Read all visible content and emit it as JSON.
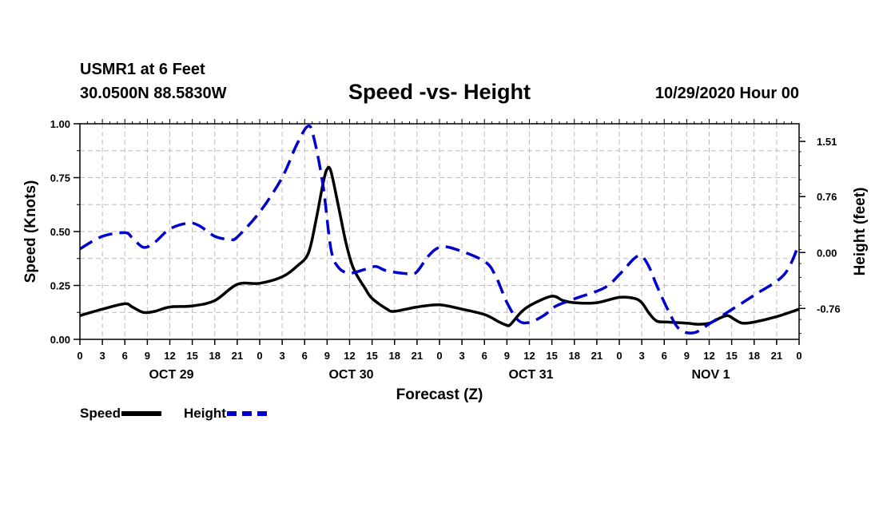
{
  "header": {
    "station": "USMR1 at 6 Feet",
    "coords": "30.0500N 88.5830W",
    "title": "Speed -vs- Height",
    "datetime": "10/29/2020 Hour 00"
  },
  "colors": {
    "speed": "#000000",
    "height": "#0000cc",
    "grid": "#bbbbbb"
  },
  "chart_data": {
    "type": "line",
    "title": "Speed -vs- Height",
    "xlabel": "Forecast (Z)",
    "ylabel_left": "Speed (Knots)",
    "ylabel_right": "Height (feet)",
    "x_range": [
      0,
      96
    ],
    "ylim_left": [
      0,
      1.0
    ],
    "ylim_right": [
      -1.18,
      1.75
    ],
    "left_ticks": [
      "0.00",
      "0.25",
      "0.50",
      "0.75",
      "1.00"
    ],
    "right_ticks": [
      "-0.76",
      "0.00",
      "0.76",
      "1.51"
    ],
    "x_tick_labels": [
      "0",
      "3",
      "6",
      "9",
      "12",
      "15",
      "18",
      "21",
      "0",
      "3",
      "6",
      "9",
      "12",
      "15",
      "18",
      "21",
      "0",
      "3",
      "6",
      "9",
      "12",
      "15",
      "18",
      "21",
      "0",
      "3",
      "6",
      "9",
      "12",
      "15",
      "18",
      "21",
      "0"
    ],
    "day_labels": [
      {
        "label": "OCT 29",
        "hour": 12
      },
      {
        "label": "OCT 30",
        "hour": 36
      },
      {
        "label": "OCT 31",
        "hour": 60
      },
      {
        "label": "NOV 1",
        "hour": 84
      }
    ],
    "grid": true,
    "legend": {
      "position": "bottom-left",
      "speed_label": "Speed",
      "height_label": "Height"
    },
    "series": [
      {
        "name": "Speed",
        "axis": "left",
        "style": "solid",
        "points": [
          [
            0,
            0.11
          ],
          [
            3,
            0.14
          ],
          [
            6,
            0.165
          ],
          [
            7,
            0.15
          ],
          [
            8.5,
            0.125
          ],
          [
            10,
            0.13
          ],
          [
            12,
            0.15
          ],
          [
            15,
            0.155
          ],
          [
            18,
            0.18
          ],
          [
            21,
            0.255
          ],
          [
            24,
            0.26
          ],
          [
            27,
            0.29
          ],
          [
            29,
            0.34
          ],
          [
            30.5,
            0.4
          ],
          [
            31.5,
            0.55
          ],
          [
            32.5,
            0.73
          ],
          [
            33,
            0.79
          ],
          [
            33.5,
            0.78
          ],
          [
            34.5,
            0.62
          ],
          [
            35.5,
            0.45
          ],
          [
            36.5,
            0.33
          ],
          [
            38,
            0.24
          ],
          [
            39,
            0.19
          ],
          [
            41,
            0.14
          ],
          [
            42,
            0.13
          ],
          [
            45,
            0.15
          ],
          [
            48,
            0.16
          ],
          [
            51,
            0.14
          ],
          [
            54,
            0.115
          ],
          [
            56,
            0.08
          ],
          [
            57,
            0.065
          ],
          [
            57.5,
            0.07
          ],
          [
            59,
            0.13
          ],
          [
            60.5,
            0.165
          ],
          [
            63,
            0.2
          ],
          [
            64.5,
            0.18
          ],
          [
            66,
            0.17
          ],
          [
            69,
            0.17
          ],
          [
            72,
            0.195
          ],
          [
            74,
            0.19
          ],
          [
            75,
            0.17
          ],
          [
            76,
            0.12
          ],
          [
            77,
            0.085
          ],
          [
            78.5,
            0.08
          ],
          [
            81,
            0.075
          ],
          [
            82.5,
            0.07
          ],
          [
            84,
            0.075
          ],
          [
            85.5,
            0.1
          ],
          [
            86.5,
            0.11
          ],
          [
            87.5,
            0.09
          ],
          [
            88.5,
            0.075
          ],
          [
            90,
            0.08
          ],
          [
            93,
            0.105
          ],
          [
            96,
            0.14
          ]
        ]
      },
      {
        "name": "Height",
        "axis": "right",
        "style": "dashed",
        "points": [
          [
            0,
            0.05
          ],
          [
            3,
            0.22
          ],
          [
            6,
            0.27
          ],
          [
            7,
            0.2
          ],
          [
            8.5,
            0.07
          ],
          [
            10,
            0.14
          ],
          [
            12,
            0.32
          ],
          [
            14.5,
            0.4
          ],
          [
            16,
            0.36
          ],
          [
            18,
            0.22
          ],
          [
            20,
            0.18
          ],
          [
            21,
            0.21
          ],
          [
            24,
            0.55
          ],
          [
            27,
            1.02
          ],
          [
            29,
            1.48
          ],
          [
            30.5,
            1.72
          ],
          [
            31.3,
            1.53
          ],
          [
            32.5,
            0.88
          ],
          [
            33.5,
            0.05
          ],
          [
            34.5,
            -0.2
          ],
          [
            36,
            -0.28
          ],
          [
            38,
            -0.23
          ],
          [
            39.5,
            -0.19
          ],
          [
            41,
            -0.25
          ],
          [
            44,
            -0.29
          ],
          [
            45,
            -0.26
          ],
          [
            46.5,
            -0.05
          ],
          [
            48,
            0.07
          ],
          [
            50,
            0.05
          ],
          [
            54,
            -0.12
          ],
          [
            55.5,
            -0.32
          ],
          [
            57,
            -0.68
          ],
          [
            58.5,
            -0.92
          ],
          [
            60,
            -0.95
          ],
          [
            62,
            -0.85
          ],
          [
            63.5,
            -0.73
          ],
          [
            66,
            -0.63
          ],
          [
            70,
            -0.48
          ],
          [
            72,
            -0.3
          ],
          [
            74,
            -0.08
          ],
          [
            75,
            -0.05
          ],
          [
            76,
            -0.2
          ],
          [
            77,
            -0.45
          ],
          [
            78.5,
            -0.78
          ],
          [
            80,
            -1.04
          ],
          [
            82,
            -1.09
          ],
          [
            84,
            -0.97
          ],
          [
            86,
            -0.84
          ],
          [
            90,
            -0.58
          ],
          [
            94,
            -0.3
          ],
          [
            96,
            0.12
          ]
        ]
      }
    ]
  }
}
